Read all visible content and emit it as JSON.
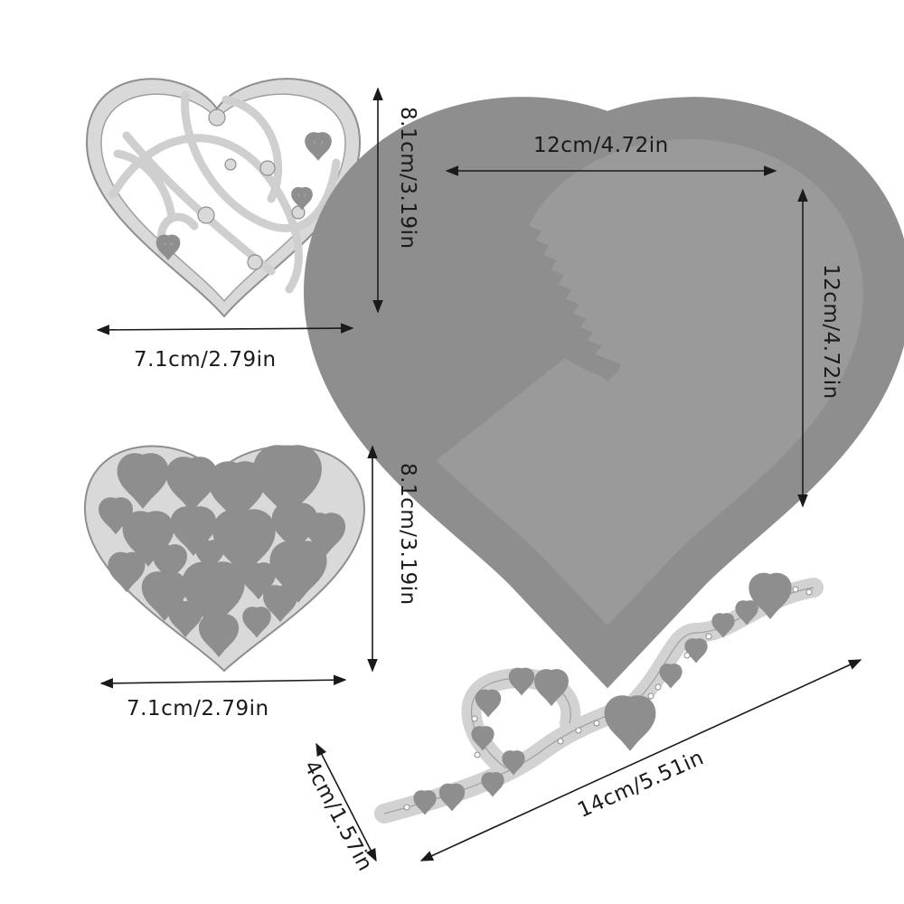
{
  "product": {
    "type": "heart cutting dies set",
    "colors": {
      "metal": "#d7d7d7",
      "edge": "#8e8e8e",
      "arrow": "#1a1a1a"
    }
  },
  "dimensions": {
    "filigree_width": "7.1cm/2.79in",
    "filigree_height": "8.1cm/3.19in",
    "nested_width": "12cm/4.72in",
    "nested_height": "12cm/4.72in",
    "cutout_width": "7.1cm/2.79in",
    "cutout_height": "8.1cm/3.19in",
    "border_length": "14cm/5.51in",
    "border_height": "4cm/1.57in"
  }
}
